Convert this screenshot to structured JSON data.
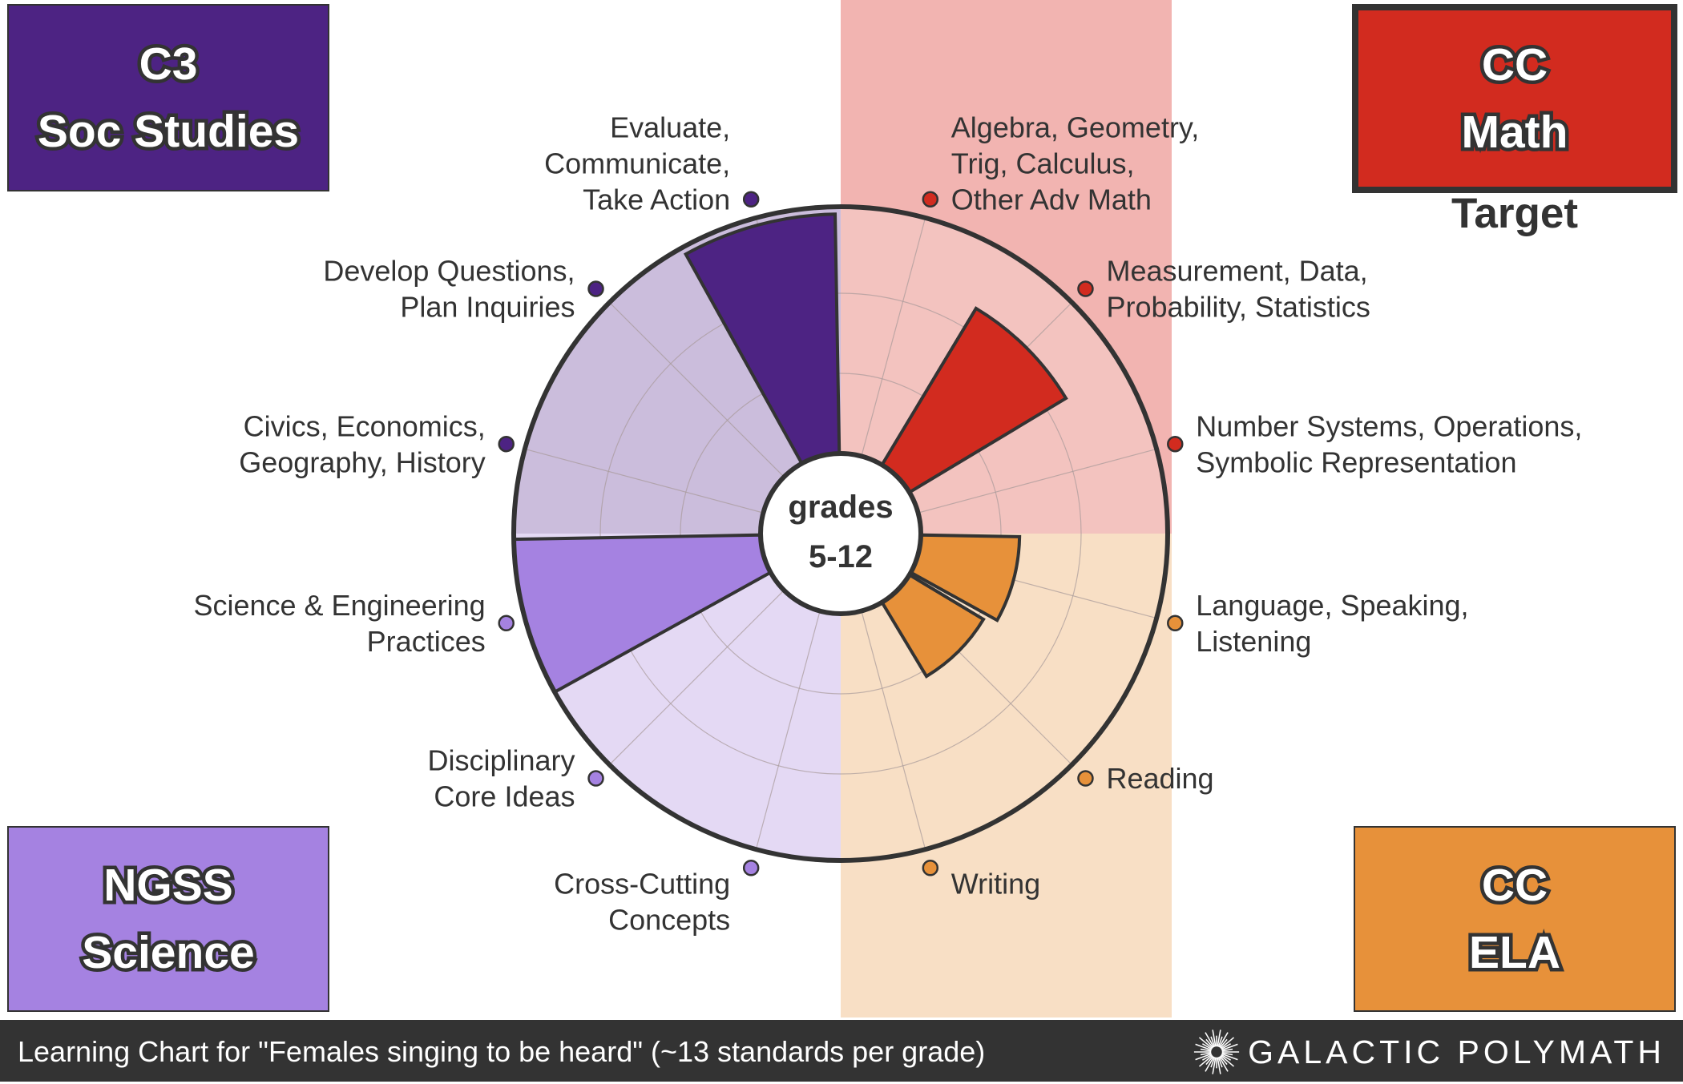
{
  "quadrants": {
    "soc_studies": {
      "line1": "C3",
      "line2": "Soc Studies",
      "color": "#4d2383",
      "bg": "#cbbddc"
    },
    "math": {
      "line1": "CC",
      "line2": "Math",
      "color": "#d22b1f",
      "bg": "#f2b4b1",
      "annotation": "Target"
    },
    "science": {
      "line1": "NGSS",
      "line2": "Science",
      "color": "#a582e1",
      "bg": "#e4d9f4"
    },
    "ela": {
      "line1": "CC",
      "line2": "ELA",
      "color": "#e7913a",
      "bg": "#f8dfc5"
    }
  },
  "center_label": {
    "line1": "grades",
    "line2": "5-12"
  },
  "footer": {
    "caption": "Learning Chart for \"Females singing to be heard\" (~13 standards per grade)",
    "brand": "GALACTIC POLYMATH"
  },
  "chart_data": {
    "type": "polar-bar",
    "center": "grades 5-12",
    "scale_max": 1,
    "grid": true,
    "segments": [
      {
        "label": "Algebra, Geometry,\nTrig, Calculus,\nOther Adv Math",
        "subject": "CC Math",
        "value": 0,
        "color": "#d22b1f"
      },
      {
        "label": "Measurement, Data,\nProbability, Statistics",
        "subject": "CC Math",
        "value": 0.74,
        "color": "#d22b1f"
      },
      {
        "label": "Number Systems, Operations,\nSymbolic Representation",
        "subject": "CC Math",
        "value": 0,
        "color": "#d22b1f"
      },
      {
        "label": "Language, Speaking,\nListening",
        "subject": "CC ELA",
        "value": 0.4,
        "color": "#e7913a"
      },
      {
        "label": "Reading",
        "subject": "CC ELA",
        "value": 0.35,
        "color": "#e7913a"
      },
      {
        "label": "Writing",
        "subject": "CC ELA",
        "value": 0,
        "color": "#e7913a"
      },
      {
        "label": "Cross-Cutting\nConcepts",
        "subject": "NGSS Science",
        "value": 0,
        "color": "#a582e1"
      },
      {
        "label": "Disciplinary\nCore Ideas",
        "subject": "NGSS Science",
        "value": 0,
        "color": "#a582e1"
      },
      {
        "label": "Science & Engineering\nPractices",
        "subject": "NGSS Science",
        "value": 1.0,
        "color": "#a582e1"
      },
      {
        "label": "Civics, Economics,\nGeography, History",
        "subject": "C3 Soc Studies",
        "value": 0,
        "color": "#4d2383"
      },
      {
        "label": "Develop Questions,\nPlan Inquiries",
        "subject": "C3 Soc Studies",
        "value": 0,
        "color": "#4d2383"
      },
      {
        "label": "Evaluate,\nCommunicate,\nTake Action",
        "subject": "C3 Soc Studies",
        "value": 0.97,
        "color": "#4d2383"
      }
    ]
  }
}
